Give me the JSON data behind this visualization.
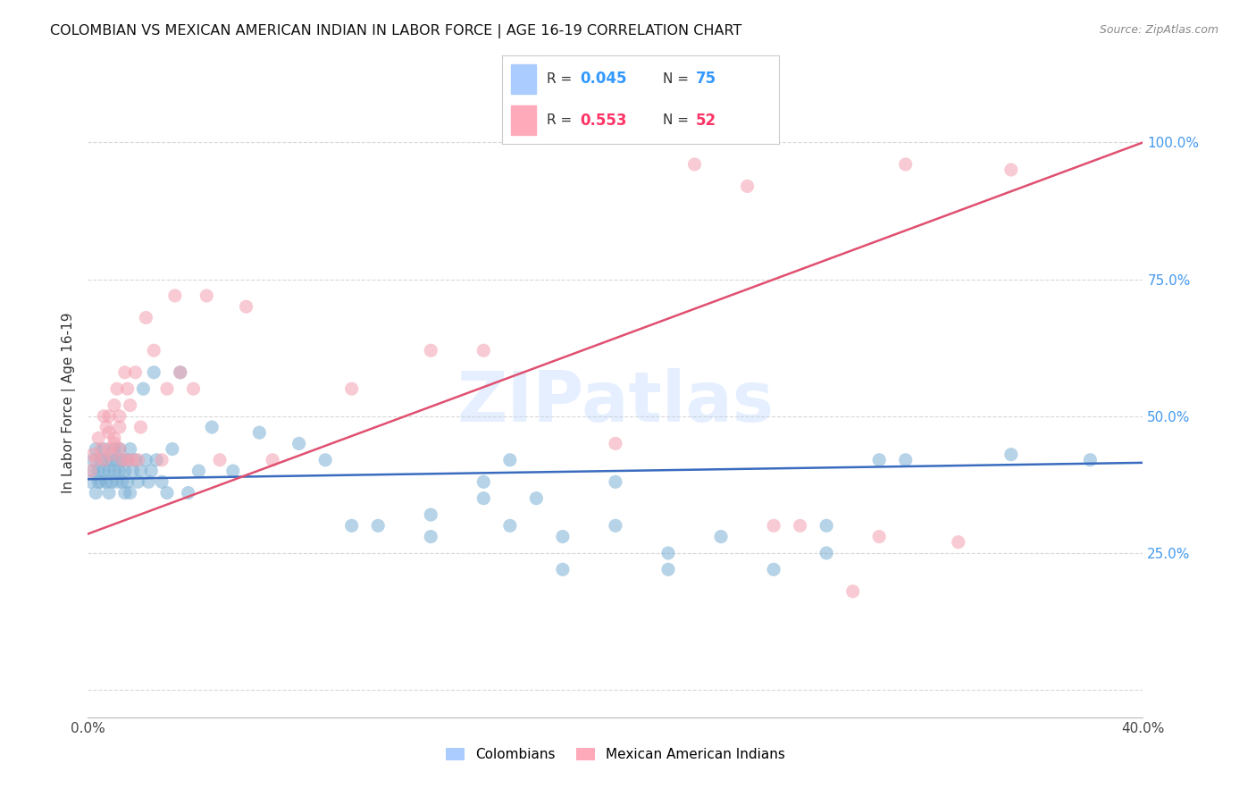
{
  "title": "COLOMBIAN VS MEXICAN AMERICAN INDIAN IN LABOR FORCE | AGE 16-19 CORRELATION CHART",
  "source": "Source: ZipAtlas.com",
  "ylabel": "In Labor Force | Age 16-19",
  "xlim": [
    0.0,
    0.4
  ],
  "ylim": [
    -0.05,
    1.1
  ],
  "xticks": [
    0.0,
    0.05,
    0.1,
    0.15,
    0.2,
    0.25,
    0.3,
    0.35,
    0.4
  ],
  "yticks_right": [
    0.0,
    0.25,
    0.5,
    0.75,
    1.0
  ],
  "ytick_labels_right": [
    "",
    "25.0%",
    "50.0%",
    "75.0%",
    "100.0%"
  ],
  "grid_color": "#d8d8d8",
  "background_color": "#ffffff",
  "watermark": "ZIPatlas",
  "blue_color": "#7bafd4",
  "pink_color": "#f4a0b0",
  "blue_line_color": "#3a6bbf",
  "pink_line_color": "#e05070",
  "right_tick_color": "#4499ee",
  "label_colombians": "Colombians",
  "label_mexican": "Mexican American Indians",
  "legend_R_blue_color": "#3399ff",
  "legend_R_pink_color": "#ff3366",
  "legend_N_blue_color": "#3399ff",
  "legend_N_pink_color": "#ff3366",
  "title_color": "#111111",
  "blue_x": [
    0.001,
    0.002,
    0.002,
    0.003,
    0.003,
    0.004,
    0.004,
    0.005,
    0.005,
    0.006,
    0.006,
    0.007,
    0.007,
    0.008,
    0.008,
    0.009,
    0.009,
    0.01,
    0.01,
    0.011,
    0.011,
    0.012,
    0.012,
    0.013,
    0.013,
    0.014,
    0.014,
    0.015,
    0.015,
    0.016,
    0.016,
    0.017,
    0.018,
    0.019,
    0.02,
    0.021,
    0.022,
    0.023,
    0.024,
    0.025,
    0.026,
    0.028,
    0.03,
    0.032,
    0.035,
    0.038,
    0.042,
    0.047,
    0.055,
    0.065,
    0.08,
    0.09,
    0.1,
    0.11,
    0.13,
    0.15,
    0.16,
    0.18,
    0.2,
    0.22,
    0.24,
    0.26,
    0.28,
    0.3,
    0.31,
    0.18,
    0.2,
    0.22,
    0.15,
    0.13,
    0.28,
    0.17,
    0.16,
    0.35,
    0.38
  ],
  "blue_y": [
    0.38,
    0.4,
    0.42,
    0.36,
    0.44,
    0.38,
    0.4,
    0.42,
    0.38,
    0.4,
    0.44,
    0.38,
    0.42,
    0.36,
    0.4,
    0.42,
    0.38,
    0.44,
    0.4,
    0.42,
    0.38,
    0.4,
    0.44,
    0.38,
    0.42,
    0.36,
    0.4,
    0.42,
    0.38,
    0.36,
    0.44,
    0.4,
    0.42,
    0.38,
    0.4,
    0.55,
    0.42,
    0.38,
    0.4,
    0.58,
    0.42,
    0.38,
    0.36,
    0.44,
    0.58,
    0.36,
    0.4,
    0.48,
    0.4,
    0.47,
    0.45,
    0.42,
    0.3,
    0.3,
    0.32,
    0.38,
    0.42,
    0.22,
    0.38,
    0.25,
    0.28,
    0.22,
    0.3,
    0.42,
    0.42,
    0.28,
    0.3,
    0.22,
    0.35,
    0.28,
    0.25,
    0.35,
    0.3,
    0.43,
    0.42
  ],
  "pink_x": [
    0.001,
    0.002,
    0.003,
    0.004,
    0.005,
    0.006,
    0.006,
    0.007,
    0.008,
    0.008,
    0.009,
    0.01,
    0.01,
    0.011,
    0.012,
    0.012,
    0.013,
    0.014,
    0.015,
    0.015,
    0.016,
    0.017,
    0.018,
    0.019,
    0.02,
    0.022,
    0.025,
    0.028,
    0.03,
    0.033,
    0.035,
    0.04,
    0.045,
    0.05,
    0.06,
    0.07,
    0.1,
    0.13,
    0.15,
    0.2,
    0.23,
    0.25,
    0.27,
    0.29,
    0.3,
    0.31,
    0.33,
    0.008,
    0.01,
    0.012,
    0.26,
    0.35
  ],
  "pink_y": [
    0.4,
    0.43,
    0.42,
    0.46,
    0.44,
    0.5,
    0.42,
    0.48,
    0.44,
    0.5,
    0.43,
    0.46,
    0.52,
    0.55,
    0.48,
    0.5,
    0.42,
    0.58,
    0.55,
    0.42,
    0.52,
    0.42,
    0.58,
    0.42,
    0.48,
    0.68,
    0.62,
    0.42,
    0.55,
    0.72,
    0.58,
    0.55,
    0.72,
    0.42,
    0.7,
    0.42,
    0.55,
    0.62,
    0.62,
    0.45,
    0.96,
    0.92,
    0.3,
    0.18,
    0.28,
    0.96,
    0.27,
    0.47,
    0.45,
    0.44,
    0.3,
    0.95
  ],
  "blue_line_x0": 0.0,
  "blue_line_x1": 0.4,
  "blue_line_y0": 0.385,
  "blue_line_y1": 0.415,
  "pink_line_x0": 0.0,
  "pink_line_x1": 0.4,
  "pink_line_y0": 0.285,
  "pink_line_y1": 1.0
}
